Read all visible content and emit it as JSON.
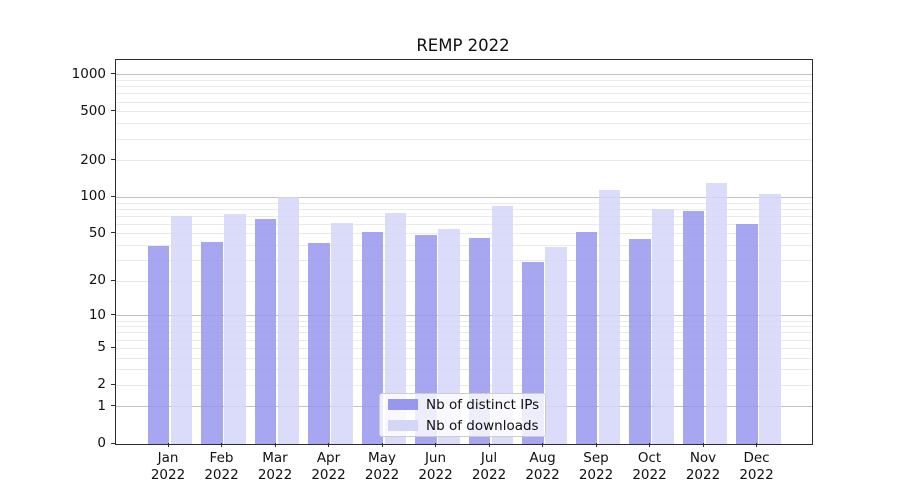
{
  "title": "REMP 2022",
  "chart_data": {
    "type": "bar",
    "title": "REMP 2022",
    "categories": [
      "Jan 2022",
      "Feb 2022",
      "Mar 2022",
      "Apr 2022",
      "May 2022",
      "Jun 2022",
      "Jul 2022",
      "Aug 2022",
      "Sep 2022",
      "Oct 2022",
      "Nov 2022",
      "Dec 2022"
    ],
    "series": [
      {
        "name": "Nb of distinct IPs",
        "color": "#9697ee",
        "values": [
          40,
          43,
          67,
          42,
          52,
          49,
          46,
          29,
          52,
          45,
          77,
          61
        ]
      },
      {
        "name": "Nb of downloads",
        "color": "#d4d6f8",
        "values": [
          71,
          73,
          100,
          62,
          74,
          55,
          85,
          39,
          115,
          80,
          132,
          106
        ]
      }
    ],
    "xlabel": "",
    "ylabel": "",
    "yscale": "log1p",
    "yticks": [
      1000,
      500,
      200,
      100,
      50,
      20,
      10,
      5,
      2,
      1,
      0
    ],
    "ylim": [
      0,
      1320
    ],
    "grid": true,
    "legend_position": "lower center"
  }
}
